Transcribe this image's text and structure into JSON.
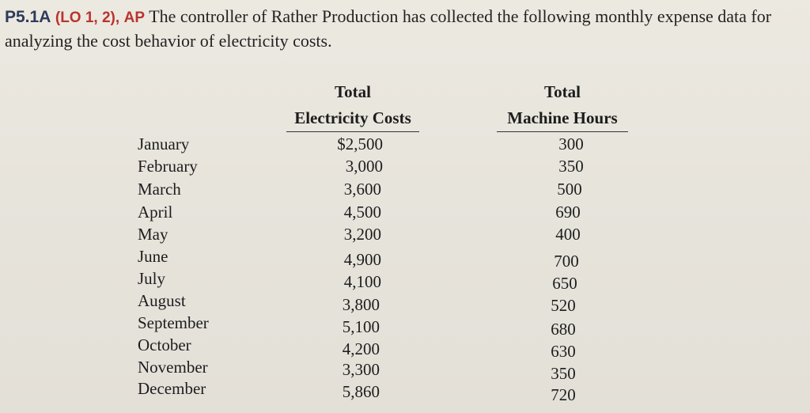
{
  "problem": {
    "id": "P5.1A",
    "lo": "(LO 1, 2),",
    "type": "AP",
    "text": "The controller of Rather Production has collected the following monthly expense data for analyzing the cost behavior of electricity costs."
  },
  "table": {
    "headers": {
      "cost_line1": "Total",
      "cost_line2": "Electricity Costs",
      "hours_line1": "Total",
      "hours_line2": "Machine Hours"
    },
    "rows": [
      {
        "month": "January",
        "cost": "$2,500",
        "hours": "300"
      },
      {
        "month": "February",
        "cost": "3,000",
        "hours": "350"
      },
      {
        "month": "March",
        "cost": "3,600",
        "hours": "500"
      },
      {
        "month": "April",
        "cost": "4,500",
        "hours": "690"
      },
      {
        "month": "May",
        "cost": "3,200",
        "hours": "400"
      },
      {
        "month": "June",
        "cost": "4,900",
        "hours": "700"
      },
      {
        "month": "July",
        "cost": "4,100",
        "hours": "650"
      },
      {
        "month": "August",
        "cost": "3,800",
        "hours": "520"
      },
      {
        "month": "September",
        "cost": "5,100",
        "hours": "680"
      },
      {
        "month": "October",
        "cost": "4,200",
        "hours": "630"
      },
      {
        "month": "November",
        "cost": "3,300",
        "hours": "350"
      },
      {
        "month": "December",
        "cost": "5,860",
        "hours": "720"
      }
    ]
  }
}
